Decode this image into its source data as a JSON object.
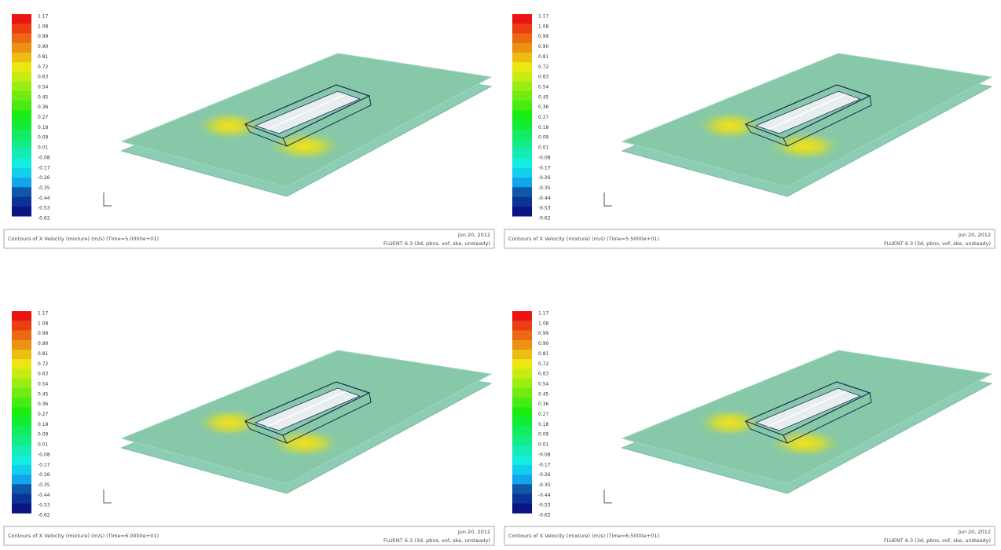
{
  "panels": [
    {
      "caption": "Contours of X Velocity (mixture) (m/s) (Time=5.0000e+01)",
      "date": "Jun 20, 2012",
      "solver": "FLUENT 6.3 (3d, pbns, vof, ske, unsteady)",
      "colorbar_labels": [
        "1.17",
        "1.08",
        "0.99",
        "0.90",
        "0.81",
        "0.72",
        "0.63",
        "0.54",
        "0.45",
        "0.36",
        "0.27",
        "0.18",
        "0.09",
        "0.01",
        "-0.08",
        "-0.17",
        "-0.26",
        "-0.35",
        "-0.44",
        "-0.53",
        "-0.62"
      ]
    },
    {
      "caption": "Contours of X Velocity (mixture) (m/s) (Time=5.5000e+01)",
      "date": "Jun 20, 2012",
      "solver": "FLUENT 6.3 (3d, pbns, vof, ske, unsteady)",
      "colorbar_labels": [
        "1.17",
        "1.08",
        "0.99",
        "0.90",
        "0.81",
        "0.72",
        "0.63",
        "0.54",
        "0.45",
        "0.36",
        "0.27",
        "0.18",
        "0.09",
        "0.01",
        "-0.08",
        "-0.17",
        "-0.26",
        "-0.35",
        "-0.44",
        "-0.53",
        "-0.62"
      ]
    },
    {
      "caption": "Contours of X Velocity (mixture) (m/s) (Time=6.0000e+01)",
      "date": "Jun 20, 2012",
      "solver": "FLUENT 6.3 (3d, pbns, vof, ske, unsteady)",
      "colorbar_labels": [
        "1.17",
        "1.08",
        "0.99",
        "0.90",
        "0.81",
        "0.72",
        "0.63",
        "0.54",
        "0.45",
        "0.36",
        "0.27",
        "0.18",
        "0.09",
        "0.01",
        "-0.08",
        "-0.17",
        "-0.26",
        "-0.35",
        "-0.44",
        "-0.53",
        "-0.62"
      ]
    },
    {
      "caption": "Contours of X Velocity (mixture) (m/s) (Time=6.5000e+01)",
      "date": "Jun 20, 2012",
      "solver": "FLUENT 6.3 (3d, pbns, vof, ske, unsteady)",
      "colorbar_labels": [
        "1.17",
        "1.08",
        "0.99",
        "0.90",
        "0.81",
        "0.72",
        "0.63",
        "0.54",
        "0.45",
        "0.36",
        "0.27",
        "0.18",
        "0.09",
        "0.01",
        "-0.08",
        "-0.17",
        "-0.26",
        "-0.35",
        "-0.44",
        "-0.53",
        "-0.62"
      ]
    }
  ]
}
